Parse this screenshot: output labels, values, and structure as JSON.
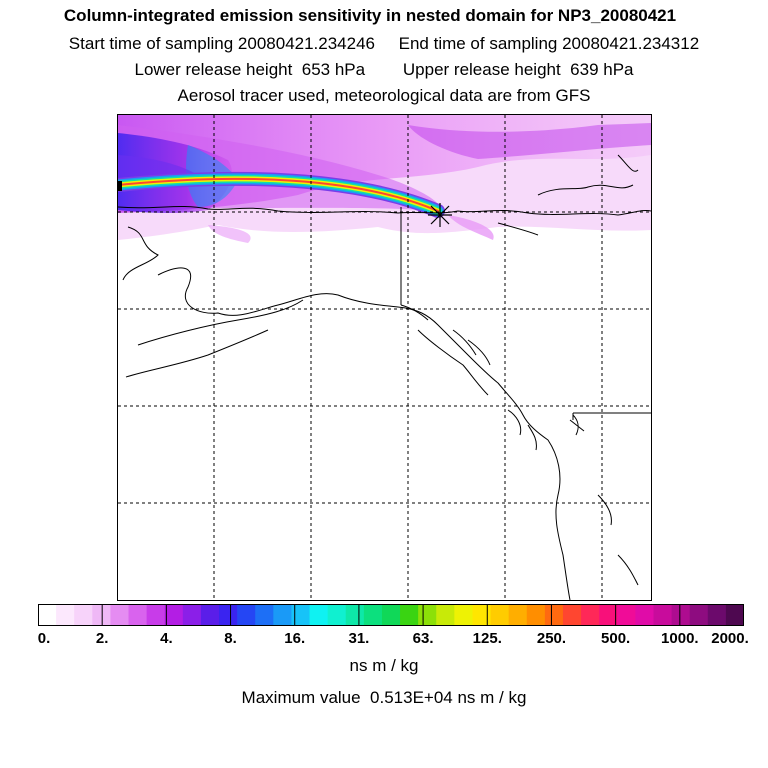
{
  "header": {
    "title": "Column-integrated emission sensitivity in nested domain for NP3_20080421",
    "sampling": "Start time of sampling 20080421.234246     End time of sampling 20080421.234312",
    "release": "Lower release height  653 hPa        Upper release height  639 hPa",
    "tracer": "Aerosol tracer used, meteorological data are from GFS"
  },
  "colorbar": {
    "tick_labels": [
      "0.",
      "2.",
      "4.",
      "8.",
      "16.",
      "31.",
      "63.",
      "125.",
      "250.",
      "500.",
      "1000.",
      "2000."
    ],
    "colors": [
      "#ffffff",
      "#fce8fd",
      "#f7d3fa",
      "#efb8f6",
      "#e58cf2",
      "#d963ee",
      "#c83ce9",
      "#b31ee4",
      "#8b1fe8",
      "#5a1ee9",
      "#3a24f0",
      "#2546f4",
      "#1d6ff6",
      "#1a9af7",
      "#17c3f8",
      "#0ff2f2",
      "#10f0d0",
      "#0ee8a8",
      "#0ce07e",
      "#10d858",
      "#3ad412",
      "#8ce008",
      "#c8ea08",
      "#eef204",
      "#ffe600",
      "#ffcc00",
      "#ffae00",
      "#ff8e00",
      "#ff6a10",
      "#ff4630",
      "#ff2858",
      "#f8107a",
      "#f00c98",
      "#e00ca8",
      "#c80c9c",
      "#ae0c90",
      "#8e0c80",
      "#6c0a6c",
      "#4e0850"
    ],
    "units": "ns m / kg"
  },
  "maximum": "Maximum value  0.513E+04 ns m / kg"
}
